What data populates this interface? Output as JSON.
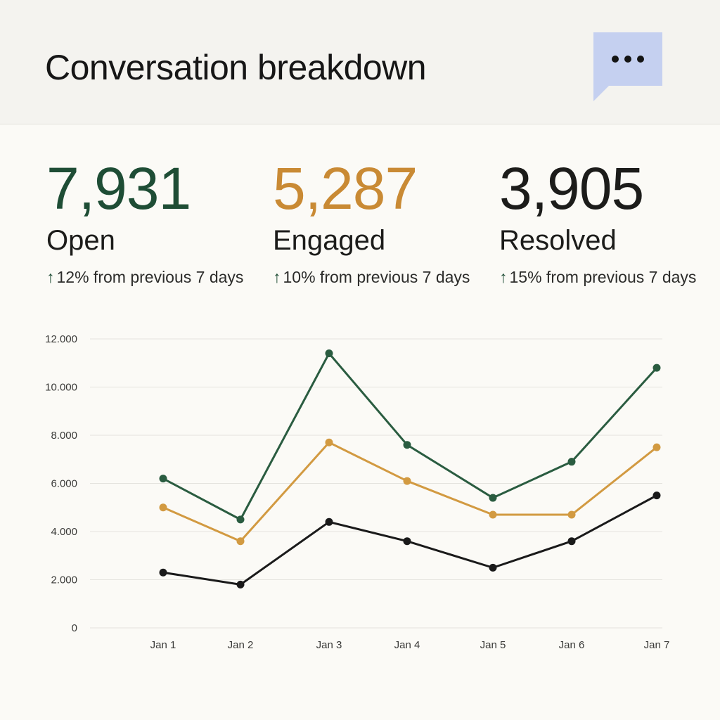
{
  "header": {
    "title": "Conversation breakdown",
    "chat_button_icon": "chat-bubble-ellipsis-icon"
  },
  "stats": [
    {
      "value": "7,931",
      "label": "Open",
      "change_arrow": "↑",
      "change_percent": "12%",
      "change_text": " from previous 7 days",
      "color": "#1e4d35"
    },
    {
      "value": "5,287",
      "label": "Engaged",
      "change_arrow": "↑",
      "change_percent": "10%",
      "change_text": " from previous 7 days",
      "color": "#c98a34"
    },
    {
      "value": "3,905",
      "label": "Resolved",
      "change_arrow": "↑",
      "change_percent": "15%",
      "change_text": " from previous 7 days",
      "color": "#1c1c1a"
    }
  ],
  "chart_data": {
    "type": "line",
    "categories": [
      "Jan 1",
      "Jan 2",
      "Jan 3",
      "Jan 4",
      "Jan 5",
      "Jan 6",
      "Jan 7"
    ],
    "ylim": [
      0,
      12000
    ],
    "yticks": [
      "0",
      "2.000",
      "4.000",
      "6.000",
      "8.000",
      "10.000",
      "12.000"
    ],
    "grid": true,
    "series": [
      {
        "name": "Open",
        "color": "#2a5c40",
        "values": [
          6200,
          4500,
          11400,
          7600,
          5400,
          6900,
          10800
        ]
      },
      {
        "name": "Engaged",
        "color": "#d29a41",
        "values": [
          5000,
          3600,
          7700,
          6100,
          4700,
          4700,
          7500
        ]
      },
      {
        "name": "Resolved",
        "color": "#1a1a1a",
        "values": [
          2300,
          1800,
          4400,
          3600,
          2500,
          3600,
          5500
        ]
      }
    ]
  }
}
